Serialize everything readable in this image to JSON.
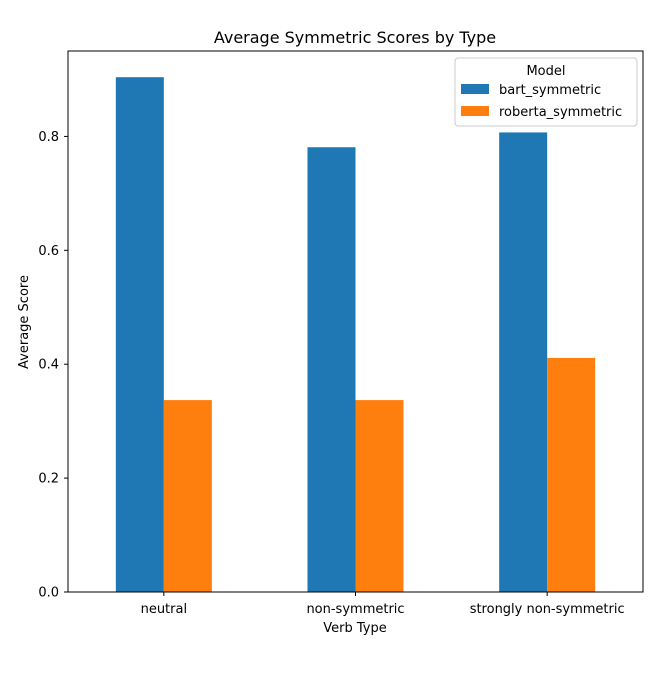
{
  "chart_data": {
    "type": "bar",
    "title": "Average Symmetric Scores by Type",
    "xlabel": "Verb Type",
    "ylabel": "Average Score",
    "categories": [
      "neutral",
      "non-symmetric",
      "strongly non-symmetric"
    ],
    "series": [
      {
        "name": "bart_symmetric",
        "values": [
          0.904,
          0.781,
          0.807
        ],
        "color": "#1f77b4"
      },
      {
        "name": "roberta_symmetric",
        "values": [
          0.337,
          0.337,
          0.411
        ],
        "color": "#ff7f0e"
      }
    ],
    "ylim": [
      0,
      0.95
    ],
    "yticks": [
      "0.0",
      "0.2",
      "0.4",
      "0.6",
      "0.8"
    ],
    "legend_title": "Model",
    "legend_position": "top-right",
    "grid": false
  }
}
